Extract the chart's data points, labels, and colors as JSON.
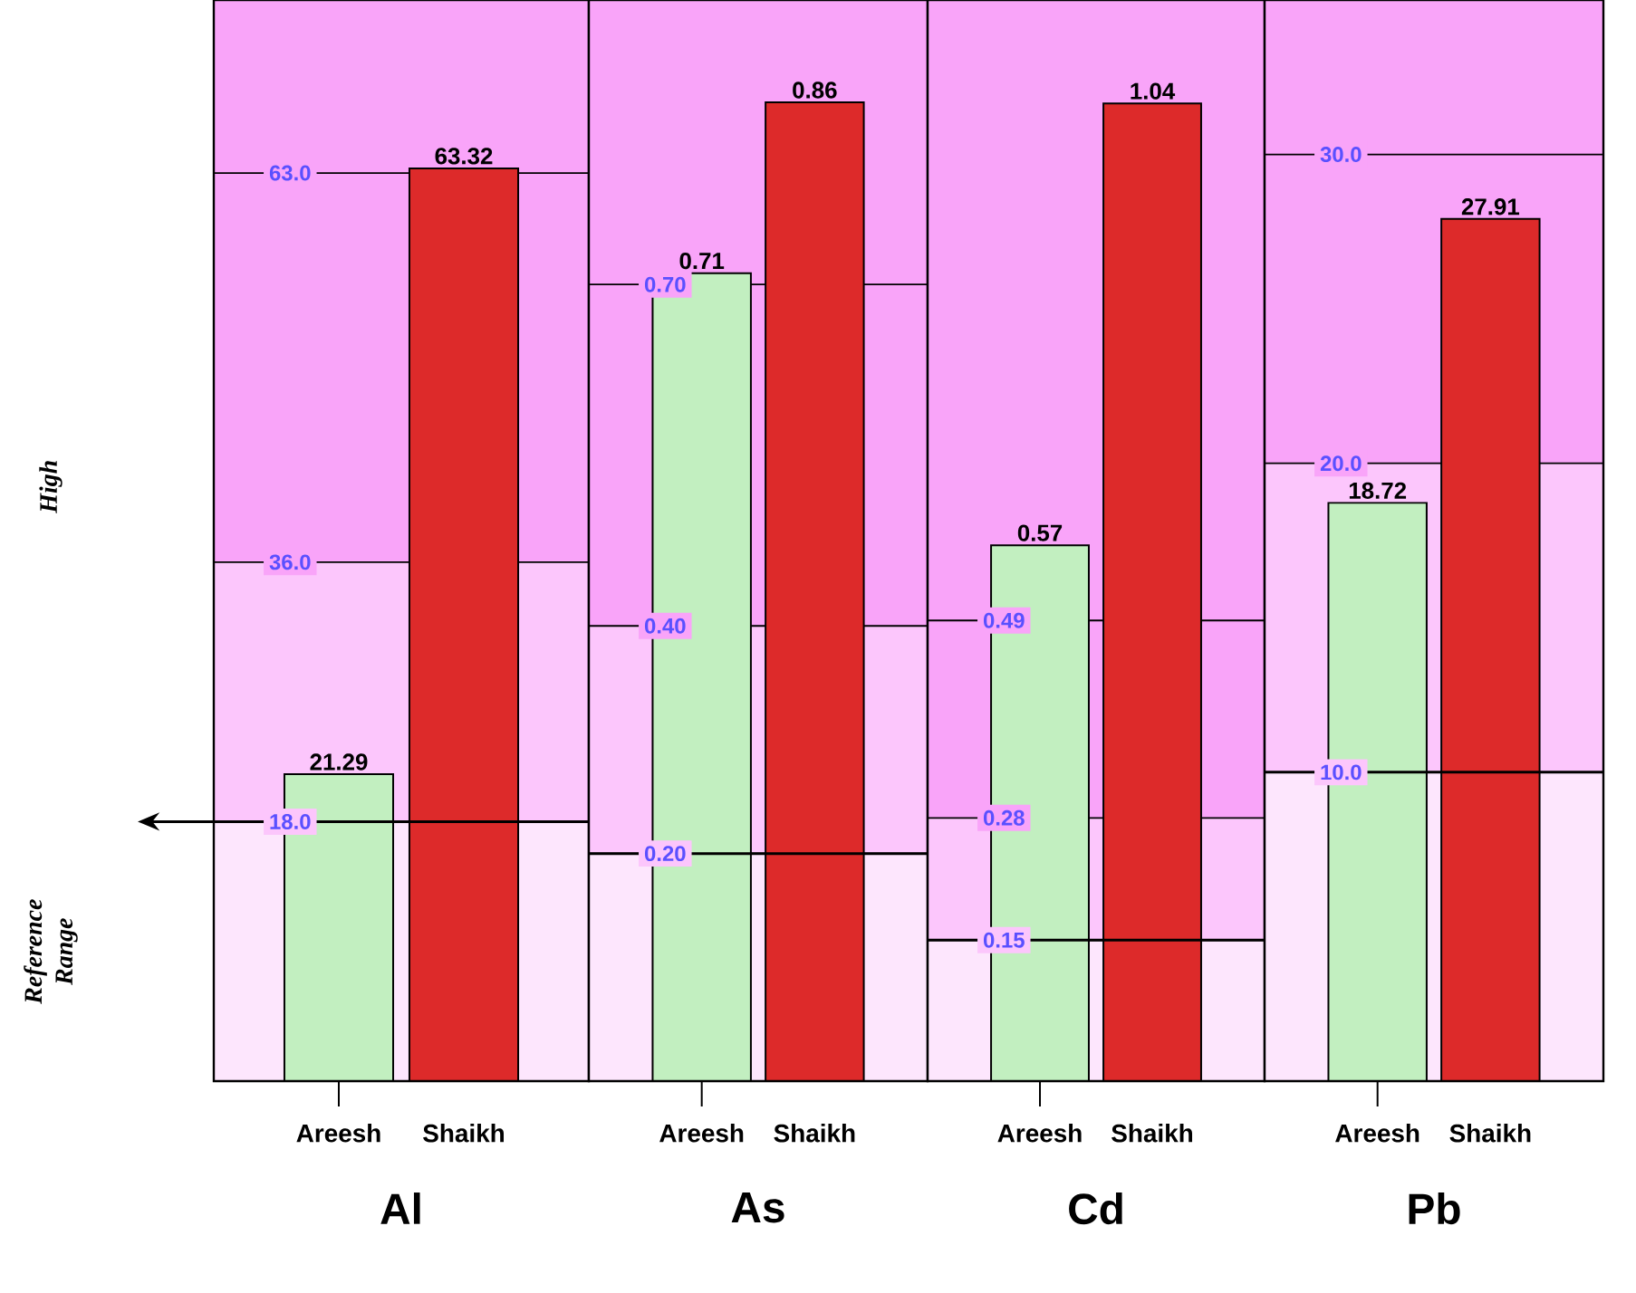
{
  "chart_data": [
    {
      "type": "bar",
      "xlabel": "Al",
      "categories": [
        "Areesh",
        "Shaikh"
      ],
      "values": [
        21.29,
        63.32
      ],
      "colors": [
        "#c2efc0",
        "#dd2a2a"
      ],
      "data_labels": true,
      "ylim": [
        0,
        75
      ],
      "yticks": [
        {
          "value": 18,
          "label": "18.0"
        },
        {
          "value": 36,
          "label": "36.0"
        },
        {
          "value": 63,
          "label": "63.0"
        }
      ],
      "grid": "y",
      "bands": [
        {
          "axis": "y",
          "from": 0,
          "to": 18,
          "color": "#fde6fd"
        },
        {
          "axis": "y",
          "from": 18,
          "to": 36,
          "color": "#fcc6fc"
        },
        {
          "axis": "y",
          "from": 36,
          "to": 75,
          "color": "#f9a4f9"
        }
      ],
      "ref_lines": [
        {
          "axis": "y",
          "value": 18,
          "color": "#000000"
        }
      ],
      "annotations": [
        "High",
        "Reference Range"
      ]
    },
    {
      "type": "bar",
      "xlabel": "As",
      "categories": [
        "Areesh",
        "Shaikh"
      ],
      "values": [
        0.71,
        0.86
      ],
      "colors": [
        "#c2efc0",
        "#dd2a2a"
      ],
      "data_labels": true,
      "ylim": [
        0,
        0.95
      ],
      "yticks": [
        {
          "value": 0.2,
          "label": "0.20"
        },
        {
          "value": 0.4,
          "label": "0.40"
        },
        {
          "value": 0.7,
          "label": "0.70"
        }
      ],
      "grid": "y",
      "bands": [
        {
          "axis": "y",
          "from": 0,
          "to": 0.2,
          "color": "#fde6fd"
        },
        {
          "axis": "y",
          "from": 0.2,
          "to": 0.4,
          "color": "#fcc6fc"
        },
        {
          "axis": "y",
          "from": 0.4,
          "to": 0.95,
          "color": "#f9a4f9"
        }
      ],
      "ref_lines": [
        {
          "axis": "y",
          "value": 0.2,
          "color": "#000000"
        }
      ]
    },
    {
      "type": "bar",
      "xlabel": "Cd",
      "categories": [
        "Areesh",
        "Shaikh"
      ],
      "values": [
        0.57,
        1.04
      ],
      "colors": [
        "#c2efc0",
        "#dd2a2a"
      ],
      "data_labels": true,
      "ylim": [
        0,
        1.15
      ],
      "yticks": [
        {
          "value": 0.15,
          "label": "0.15"
        },
        {
          "value": 0.28,
          "label": "0.28"
        },
        {
          "value": 0.49,
          "label": "0.49"
        }
      ],
      "grid": "y",
      "bands": [
        {
          "axis": "y",
          "from": 0,
          "to": 0.15,
          "color": "#fde6fd"
        },
        {
          "axis": "y",
          "from": 0.15,
          "to": 0.28,
          "color": "#fcc6fc"
        },
        {
          "axis": "y",
          "from": 0.28,
          "to": 1.15,
          "color": "#f9a4f9"
        }
      ],
      "ref_lines": [
        {
          "axis": "y",
          "value": 0.15,
          "color": "#000000"
        }
      ]
    },
    {
      "type": "bar",
      "xlabel": "Pb",
      "categories": [
        "Areesh",
        "Shaikh"
      ],
      "values": [
        18.72,
        27.91
      ],
      "colors": [
        "#c2efc0",
        "#dd2a2a"
      ],
      "data_labels": true,
      "ylim": [
        0,
        35
      ],
      "yticks": [
        {
          "value": 10,
          "label": "10.0"
        },
        {
          "value": 20,
          "label": "20.0"
        },
        {
          "value": 30,
          "label": "30.0"
        }
      ],
      "grid": "y",
      "bands": [
        {
          "axis": "y",
          "from": 0,
          "to": 10,
          "color": "#fde6fd"
        },
        {
          "axis": "y",
          "from": 10,
          "to": 20,
          "color": "#fcc6fc"
        },
        {
          "axis": "y",
          "from": 20,
          "to": 35,
          "color": "#f9a4f9"
        }
      ],
      "ref_lines": [
        {
          "axis": "y",
          "value": 10,
          "color": "#000000"
        }
      ]
    }
  ]
}
